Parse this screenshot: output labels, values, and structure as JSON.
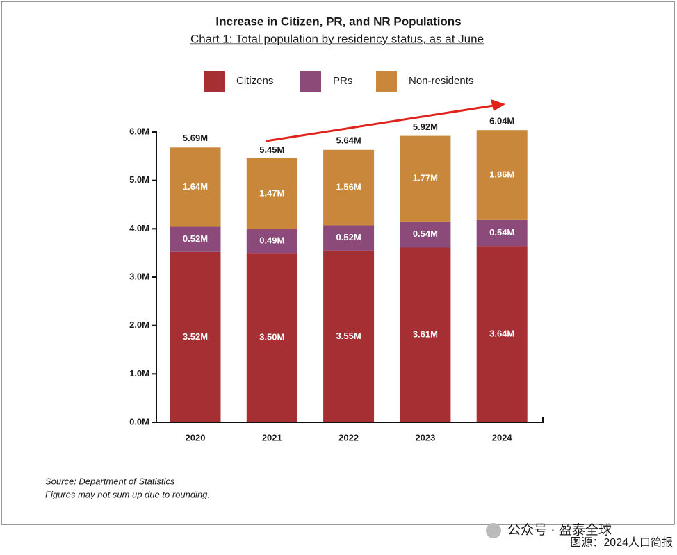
{
  "chart_data": {
    "type": "stacked-bar",
    "title": "Increase in Citizen, PR, and NR Populations",
    "subtitle": "Chart 1: Total population by residency status, as at June",
    "categories": [
      "2020",
      "2021",
      "2022",
      "2023",
      "2024"
    ],
    "series": [
      {
        "name": "Citizens",
        "color": "#a52f33",
        "values": [
          3.52,
          3.5,
          3.55,
          3.61,
          3.64
        ],
        "value_labels": [
          "3.52M",
          "3.50M",
          "3.55M",
          "3.61M",
          "3.64M"
        ]
      },
      {
        "name": "PRs",
        "color": "#8b4a7a",
        "values": [
          0.52,
          0.49,
          0.52,
          0.54,
          0.54
        ],
        "value_labels": [
          "0.52M",
          "0.49M",
          "0.52M",
          "0.54M",
          "0.54M"
        ]
      },
      {
        "name": "Non-residents",
        "color": "#c8873a",
        "values": [
          1.64,
          1.47,
          1.56,
          1.77,
          1.86
        ],
        "value_labels": [
          "1.64M",
          "1.47M",
          "1.56M",
          "1.77M",
          "1.86M"
        ]
      }
    ],
    "totals": {
      "values": [
        5.69,
        5.45,
        5.64,
        5.92,
        6.04
      ],
      "value_labels": [
        "5.69M",
        "5.45M",
        "5.64M",
        "5.92M",
        "6.04M"
      ]
    },
    "ylim": [
      0,
      6
    ],
    "yticks": [
      {
        "value": 0,
        "label": "0.0M"
      },
      {
        "value": 1,
        "label": "1.0M"
      },
      {
        "value": 2,
        "label": "2.0M"
      },
      {
        "value": 3,
        "label": "3.0M"
      },
      {
        "value": 4,
        "label": "4.0M"
      },
      {
        "value": 5,
        "label": "5.0M"
      },
      {
        "value": 6,
        "label": "6.0M"
      }
    ],
    "source": "Source: Department of Statistics",
    "note": "Figures may not sum up due to rounding.",
    "watermark": "公众号 · 盈泰全球",
    "credit": "图源：2024人口简报"
  }
}
